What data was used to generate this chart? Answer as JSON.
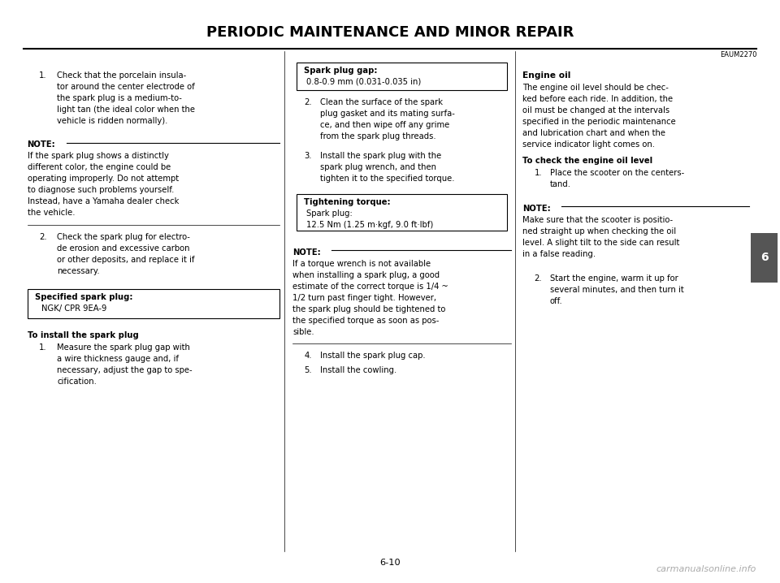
{
  "title": "PERIODIC MAINTENANCE AND MINOR REPAIR",
  "page_number": "6-10",
  "watermark": "carmanualsonline.info",
  "code_ref": "EAUM2270",
  "tab_label": "6",
  "bg_color": "#ffffff"
}
